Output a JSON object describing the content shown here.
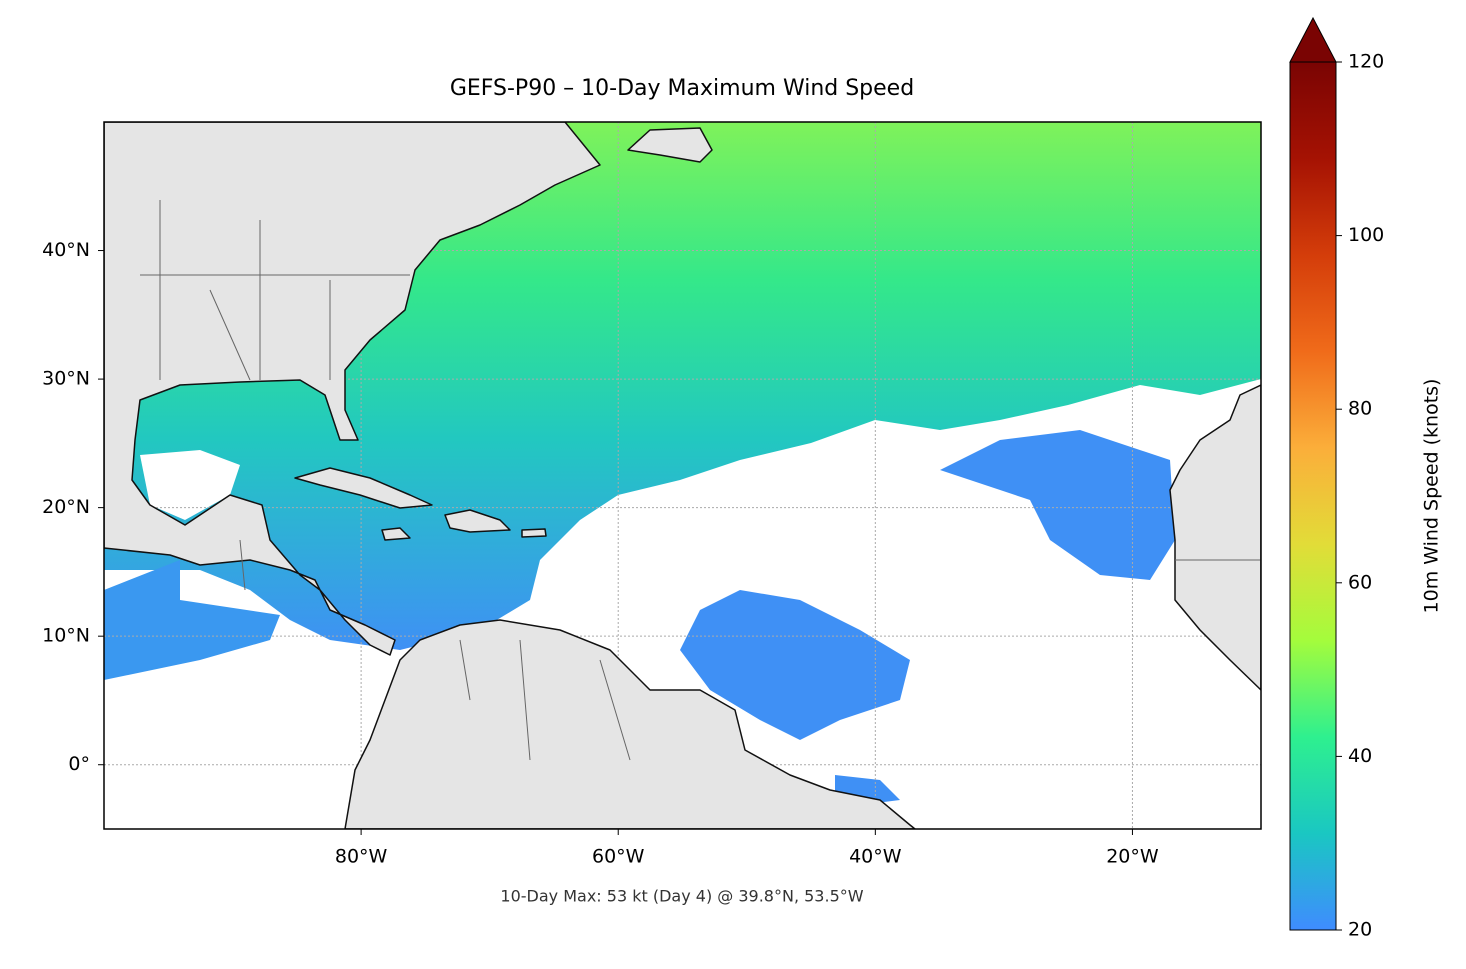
{
  "title": "GEFS-P90 – 10-Day Maximum Wind Speed",
  "annotation": "10-Day Max: 53 kt (Day 4) @ 39.8°N, 53.5°W",
  "xlim": [
    -100,
    -10
  ],
  "ylim": [
    -5,
    50
  ],
  "xticks": [
    {
      "value": -80,
      "label": "80°W"
    },
    {
      "value": -60,
      "label": "60°W"
    },
    {
      "value": -40,
      "label": "40°W"
    },
    {
      "value": -20,
      "label": "20°W"
    }
  ],
  "yticks": [
    {
      "value": 0,
      "label": "0°"
    },
    {
      "value": 10,
      "label": "10°N"
    },
    {
      "value": 20,
      "label": "20°N"
    },
    {
      "value": 30,
      "label": "30°N"
    },
    {
      "value": 40,
      "label": "40°N"
    }
  ],
  "grid": true,
  "colorbar": {
    "label": "10m Wind Speed (knots)",
    "lim": [
      20,
      120
    ],
    "ticks": [
      20,
      40,
      60,
      80,
      100,
      120
    ],
    "colormap": [
      "#3f8cff",
      "#1ac7c2",
      "#2ef08f",
      "#a4fc3c",
      "#e2dc38",
      "#fbae3a",
      "#f06b1a",
      "#d43d0a",
      "#a51203",
      "#7a0403"
    ]
  }
}
